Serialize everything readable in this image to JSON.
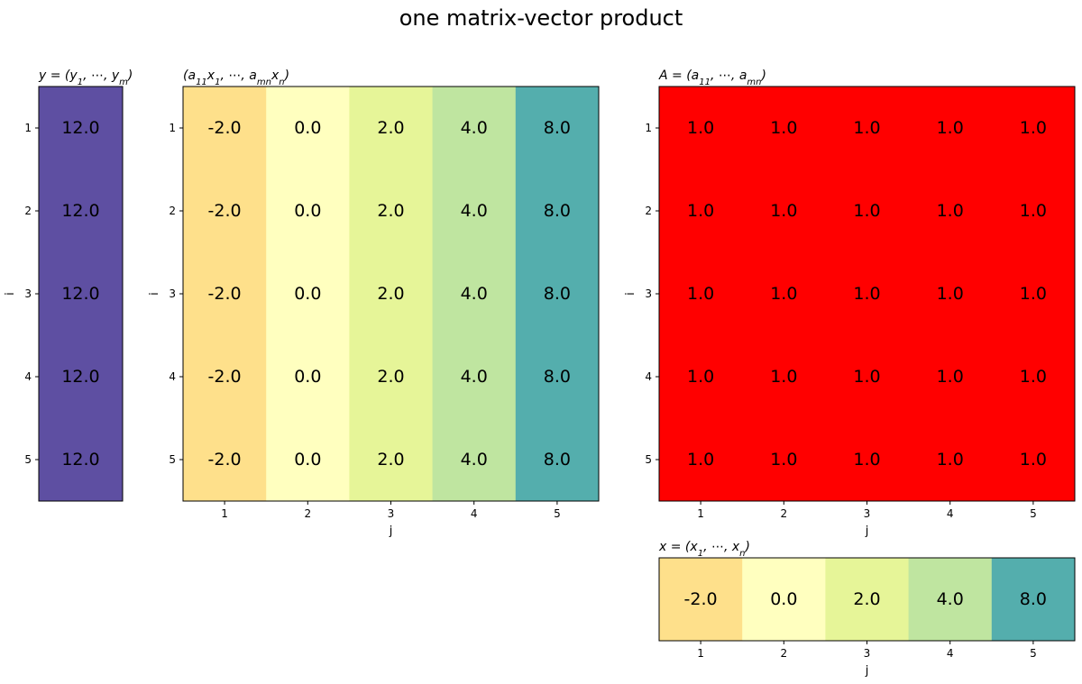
{
  "figure": {
    "title": "one matrix-vector product"
  },
  "chart_data": [
    {
      "type": "heatmap",
      "id": "y",
      "title": "y = (y1, ..., ym)",
      "title_parts": [
        {
          "t": "y"
        },
        {
          "t": " = ("
        },
        {
          "t": "y"
        },
        {
          "t": "1",
          "sub": true
        },
        {
          "t": ", ⋯, "
        },
        {
          "t": "y"
        },
        {
          "t": "m",
          "sub": true
        },
        {
          "t": ")"
        }
      ],
      "ylabel": "i",
      "xlabel": "",
      "row_ticks": [
        "1",
        "2",
        "3",
        "4",
        "5"
      ],
      "col_ticks": [],
      "values": [
        [
          12.0
        ],
        [
          12.0
        ],
        [
          12.0
        ],
        [
          12.0
        ],
        [
          12.0
        ]
      ],
      "cell_colors": [
        [
          "#5e4fa2"
        ],
        [
          "#5e4fa2"
        ],
        [
          "#5e4fa2"
        ],
        [
          "#5e4fa2"
        ],
        [
          "#5e4fa2"
        ]
      ],
      "colormap": "Spectral"
    },
    {
      "type": "heatmap",
      "id": "ax",
      "title": "(a11x1, ..., amnxn)",
      "title_parts": [
        {
          "t": "("
        },
        {
          "t": "a"
        },
        {
          "t": "11",
          "sub": true
        },
        {
          "t": "x"
        },
        {
          "t": "1",
          "sub": true
        },
        {
          "t": ", ⋯, "
        },
        {
          "t": "a"
        },
        {
          "t": "mn",
          "sub": true
        },
        {
          "t": "x"
        },
        {
          "t": "n",
          "sub": true
        },
        {
          "t": ")"
        }
      ],
      "ylabel": "i",
      "xlabel": "j",
      "row_ticks": [
        "1",
        "2",
        "3",
        "4",
        "5"
      ],
      "col_ticks": [
        "1",
        "2",
        "3",
        "4",
        "5"
      ],
      "values": [
        [
          -2.0,
          0.0,
          2.0,
          4.0,
          8.0
        ],
        [
          -2.0,
          0.0,
          2.0,
          4.0,
          8.0
        ],
        [
          -2.0,
          0.0,
          2.0,
          4.0,
          8.0
        ],
        [
          -2.0,
          0.0,
          2.0,
          4.0,
          8.0
        ],
        [
          -2.0,
          0.0,
          2.0,
          4.0,
          8.0
        ]
      ],
      "cell_colors": [
        [
          "#fee08b",
          "#ffffbf",
          "#e6f598",
          "#bfe5a0",
          "#54aead"
        ],
        [
          "#fee08b",
          "#ffffbf",
          "#e6f598",
          "#bfe5a0",
          "#54aead"
        ],
        [
          "#fee08b",
          "#ffffbf",
          "#e6f598",
          "#bfe5a0",
          "#54aead"
        ],
        [
          "#fee08b",
          "#ffffbf",
          "#e6f598",
          "#bfe5a0",
          "#54aead"
        ],
        [
          "#fee08b",
          "#ffffbf",
          "#e6f598",
          "#bfe5a0",
          "#54aead"
        ]
      ],
      "colormap": "Spectral"
    },
    {
      "type": "heatmap",
      "id": "A",
      "title": "A = (a11, ..., amn)",
      "title_parts": [
        {
          "t": "A"
        },
        {
          "t": " = ("
        },
        {
          "t": "a"
        },
        {
          "t": "11",
          "sub": true
        },
        {
          "t": ", ⋯, "
        },
        {
          "t": "a"
        },
        {
          "t": "mn",
          "sub": true
        },
        {
          "t": ")"
        }
      ],
      "ylabel": "i",
      "xlabel": "j",
      "row_ticks": [
        "1",
        "2",
        "3",
        "4",
        "5"
      ],
      "col_ticks": [
        "1",
        "2",
        "3",
        "4",
        "5"
      ],
      "values": [
        [
          1.0,
          1.0,
          1.0,
          1.0,
          1.0
        ],
        [
          1.0,
          1.0,
          1.0,
          1.0,
          1.0
        ],
        [
          1.0,
          1.0,
          1.0,
          1.0,
          1.0
        ],
        [
          1.0,
          1.0,
          1.0,
          1.0,
          1.0
        ],
        [
          1.0,
          1.0,
          1.0,
          1.0,
          1.0
        ]
      ],
      "cell_colors": [
        [
          "#ff0000",
          "#ff0000",
          "#ff0000",
          "#ff0000",
          "#ff0000"
        ],
        [
          "#ff0000",
          "#ff0000",
          "#ff0000",
          "#ff0000",
          "#ff0000"
        ],
        [
          "#ff0000",
          "#ff0000",
          "#ff0000",
          "#ff0000",
          "#ff0000"
        ],
        [
          "#ff0000",
          "#ff0000",
          "#ff0000",
          "#ff0000",
          "#ff0000"
        ],
        [
          "#ff0000",
          "#ff0000",
          "#ff0000",
          "#ff0000",
          "#ff0000"
        ]
      ],
      "colormap": "solid red"
    },
    {
      "type": "heatmap",
      "id": "x",
      "title": "x = (x1, ..., xn)",
      "title_parts": [
        {
          "t": "x"
        },
        {
          "t": " = ("
        },
        {
          "t": "x"
        },
        {
          "t": "1",
          "sub": true
        },
        {
          "t": ", ⋯, "
        },
        {
          "t": "x"
        },
        {
          "t": "n",
          "sub": true
        },
        {
          "t": ")"
        }
      ],
      "ylabel": "",
      "xlabel": "j",
      "row_ticks": [],
      "col_ticks": [
        "1",
        "2",
        "3",
        "4",
        "5"
      ],
      "values": [
        [
          -2.0,
          0.0,
          2.0,
          4.0,
          8.0
        ]
      ],
      "cell_colors": [
        [
          "#fee08b",
          "#ffffbf",
          "#e6f598",
          "#bfe5a0",
          "#54aead"
        ]
      ],
      "colormap": "Spectral"
    }
  ]
}
